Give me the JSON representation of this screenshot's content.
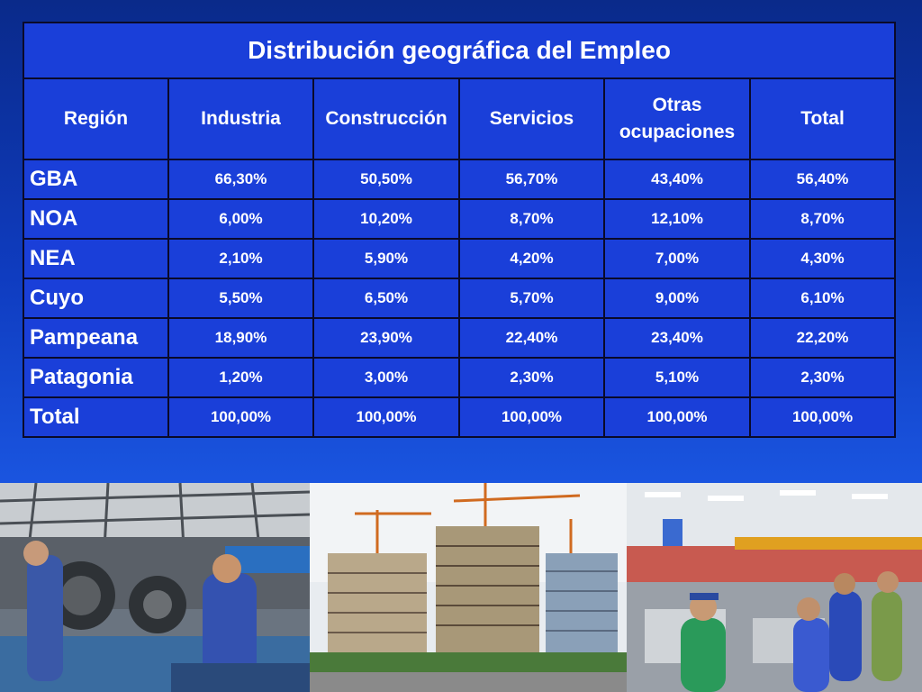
{
  "table": {
    "title": "Distribución geográfica del Empleo",
    "headers": [
      "Región",
      "Industria",
      "Construcción",
      "Servicios",
      "Otras ocupaciones",
      "Total"
    ],
    "rows": [
      {
        "region": "GBA",
        "values": [
          "66,30%",
          "50,50%",
          "56,70%",
          "43,40%",
          "56,40%"
        ]
      },
      {
        "region": "NOA",
        "values": [
          "6,00%",
          "10,20%",
          "8,70%",
          "12,10%",
          "8,70%"
        ]
      },
      {
        "region": "NEA",
        "values": [
          "2,10%",
          "5,90%",
          "4,20%",
          "7,00%",
          "4,30%"
        ]
      },
      {
        "region": "Cuyo",
        "values": [
          "5,50%",
          "6,50%",
          "5,70%",
          "9,00%",
          "6,10%"
        ]
      },
      {
        "region": "Pampeana",
        "values": [
          "18,90%",
          "23,90%",
          "22,40%",
          "23,40%",
          "22,20%"
        ]
      },
      {
        "region": "Patagonia",
        "values": [
          "1,20%",
          "3,00%",
          "2,30%",
          "5,10%",
          "2,30%"
        ]
      },
      {
        "region": "Total",
        "values": [
          "100,00%",
          "100,00%",
          "100,00%",
          "100,00%",
          "100,00%"
        ]
      }
    ]
  },
  "photos": [
    "factory-workers-photo",
    "building-construction-photo",
    "supermarket-checkout-photo"
  ],
  "colors": {
    "table_bg": "#1a3fd9",
    "border": "#0a0a2a",
    "text": "#ffffff"
  }
}
